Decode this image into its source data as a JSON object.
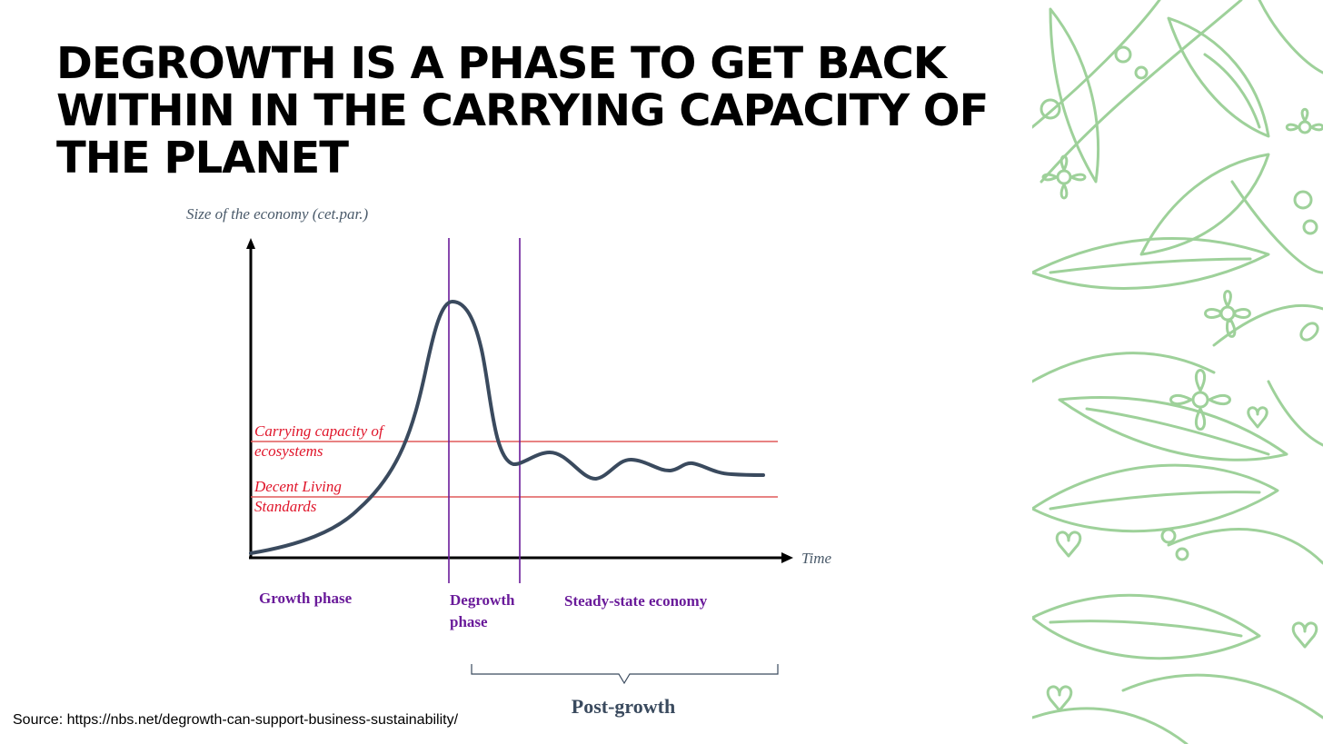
{
  "title": "DEGROWTH IS A PHASE TO GET BACK WITHIN IN THE CARRYING CAPACITY OF THE PLANET",
  "source": "Source: https://nbs.net/degrowth-can-support-business-sustainability/",
  "diagram": {
    "y_axis_label": "Size of the economy (cet.par.)",
    "x_axis_label": "Time",
    "thresholds": [
      {
        "line1": "Carrying capacity of",
        "line2": "ecosystems"
      },
      {
        "line1": "Decent Living",
        "line2": "Standards"
      }
    ],
    "phases": {
      "growth": "Growth phase",
      "degrowth_line1": "Degrowth",
      "degrowth_line2": "phase",
      "steady": "Steady-state economy"
    },
    "post_growth_label": "Post-growth",
    "colors": {
      "curve": "#3a4a5e",
      "threshold": "#e05a5a",
      "threshold_text": "#e0152a",
      "phase": "#6a1b9a",
      "axis": "#000000",
      "bracket": "#3a4a5e",
      "floral": "#9ed19a"
    }
  }
}
